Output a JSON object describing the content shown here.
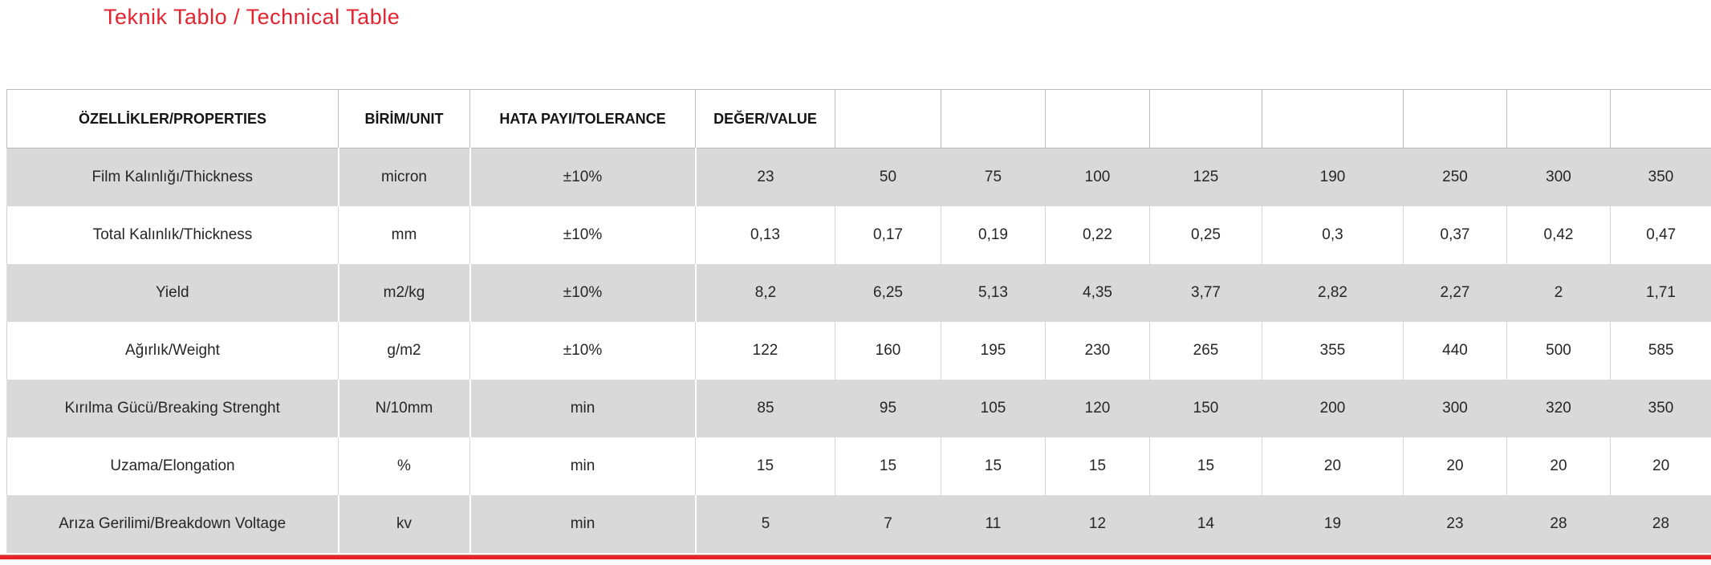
{
  "title": "Teknik Tablo / Technical Table",
  "colors": {
    "title_red": "#e32430",
    "bottom_rule_red": "#e8232a",
    "band_gray": "#d9d9d9",
    "header_border_gray": "#bdbdbd"
  },
  "table": {
    "headers": [
      "ÖZELLİKLER/PROPERTIES",
      "BİRİM/UNIT",
      "HATA PAYI/TOLERANCE",
      "DEĞER/VALUE",
      "",
      "",
      "",
      "",
      "",
      "",
      "",
      ""
    ],
    "rows": [
      {
        "property": "Film Kalınlığı/Thickness",
        "unit": "micron",
        "tolerance": "±10%",
        "values": [
          "23",
          "50",
          "75",
          "100",
          "125",
          "190",
          "250",
          "300",
          "350"
        ]
      },
      {
        "property": "Total Kalınlık/Thickness",
        "unit": "mm",
        "tolerance": "±10%",
        "values": [
          "0,13",
          "0,17",
          "0,19",
          "0,22",
          "0,25",
          "0,3",
          "0,37",
          "0,42",
          "0,47"
        ]
      },
      {
        "property": "Yield",
        "unit": "m2/kg",
        "tolerance": "±10%",
        "values": [
          "8,2",
          "6,25",
          "5,13",
          "4,35",
          "3,77",
          "2,82",
          "2,27",
          "2",
          "1,71"
        ]
      },
      {
        "property": "Ağırlık/Weight",
        "unit": "g/m2",
        "tolerance": "±10%",
        "values": [
          "122",
          "160",
          "195",
          "230",
          "265",
          "355",
          "440",
          "500",
          "585"
        ]
      },
      {
        "property": "Kırılma Gücü/Breaking Strenght",
        "unit": "N/10mm",
        "tolerance": "min",
        "values": [
          "85",
          "95",
          "105",
          "120",
          "150",
          "200",
          "300",
          "320",
          "350"
        ]
      },
      {
        "property": "Uzama/Elongation",
        "unit": "%",
        "tolerance": "min",
        "values": [
          "15",
          "15",
          "15",
          "15",
          "15",
          "20",
          "20",
          "20",
          "20"
        ]
      },
      {
        "property": "Arıza Gerilimi/Breakdown Voltage",
        "unit": "kv",
        "tolerance": "min",
        "values": [
          "5",
          "7",
          "11",
          "12",
          "14",
          "19",
          "23",
          "28",
          "28"
        ]
      }
    ]
  }
}
